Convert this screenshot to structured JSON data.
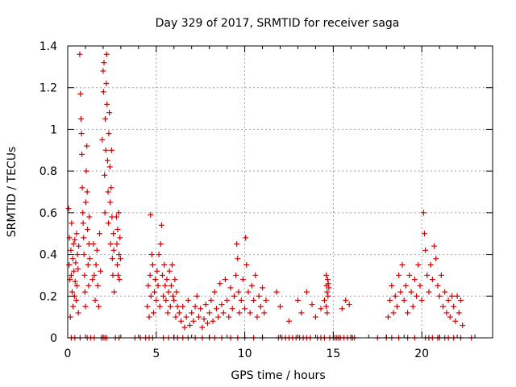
{
  "chart_data": {
    "type": "scatter",
    "title": "Day 329 of 2017, SRMTID for receiver saga",
    "xlabel": "GPS time / hours",
    "ylabel": "SRMTID / TECUs",
    "xlim": [
      0,
      24
    ],
    "ylim": [
      0,
      1.4
    ],
    "xticks": [
      0,
      5,
      10,
      15,
      20
    ],
    "xtick_labels": [
      "0",
      "5",
      "10",
      "15",
      "20"
    ],
    "yticks": [
      0,
      0.2,
      0.4,
      0.6,
      0.8,
      1.0,
      1.2,
      1.4
    ],
    "ytick_labels": [
      "0",
      "0.2",
      "0.4",
      "0.6",
      "0.8",
      "1",
      "1.2",
      "1.4"
    ],
    "grid": true,
    "marker": "+",
    "colors": {
      "marker": "#d00000",
      "grid": "#a0a0a0",
      "axis": "#000000"
    },
    "series": [
      {
        "name": "SRMTID",
        "points": [
          [
            0.05,
            0.62
          ],
          [
            0.08,
            0.35
          ],
          [
            0.1,
            0.48
          ],
          [
            0.12,
            0.28
          ],
          [
            0.15,
            0.1
          ],
          [
            0.18,
            0.42
          ],
          [
            0.2,
            0.3
          ],
          [
            0.22,
            0.55
          ],
          [
            0.25,
            0.22
          ],
          [
            0.28,
            0.38
          ],
          [
            0.3,
            0.15
          ],
          [
            0.33,
            0.45
          ],
          [
            0.35,
            0.32
          ],
          [
            0.38,
            0.2
          ],
          [
            0.4,
            0.47
          ],
          [
            0.42,
            0.27
          ],
          [
            0.45,
            0.36
          ],
          [
            0.48,
            0.18
          ],
          [
            0.5,
            0.5
          ],
          [
            0.52,
            0.25
          ],
          [
            0.55,
            0.4
          ],
          [
            0.58,
            0.33
          ],
          [
            0.6,
            0.12
          ],
          [
            0.62,
            0.44
          ],
          [
            0.68,
            1.36
          ],
          [
            0.72,
            1.17
          ],
          [
            0.75,
            1.05
          ],
          [
            0.78,
            0.98
          ],
          [
            0.8,
            0.88
          ],
          [
            0.82,
            0.72
          ],
          [
            0.85,
            0.6
          ],
          [
            0.87,
            0.55
          ],
          [
            0.9,
            0.48
          ],
          [
            0.92,
            0.4
          ],
          [
            0.95,
            0.3
          ],
          [
            0.97,
            0.22
          ],
          [
            1.0,
            0.15
          ],
          [
            1.02,
            0.65
          ],
          [
            1.05,
            0.8
          ],
          [
            1.08,
            0.92
          ],
          [
            1.1,
            0.7
          ],
          [
            1.12,
            0.52
          ],
          [
            1.15,
            0.35
          ],
          [
            1.18,
            0.25
          ],
          [
            1.2,
            0.45
          ],
          [
            1.22,
            0.58
          ],
          [
            1.25,
            0.38
          ],
          [
            1.4,
            0.28
          ],
          [
            1.45,
            0.45
          ],
          [
            1.5,
            0.3
          ],
          [
            1.55,
            0.18
          ],
          [
            1.6,
            0.35
          ],
          [
            1.65,
            0.42
          ],
          [
            1.7,
            0.25
          ],
          [
            1.75,
            0.15
          ],
          [
            1.8,
            0.5
          ],
          [
            1.85,
            0.32
          ],
          [
            1.95,
            0.95
          ],
          [
            2.0,
            1.28
          ],
          [
            2.02,
            1.18
          ],
          [
            2.05,
            1.32
          ],
          [
            2.08,
            0.78
          ],
          [
            2.1,
            0.6
          ],
          [
            2.12,
            1.05
          ],
          [
            2.15,
            0.9
          ],
          [
            2.18,
            1.22
          ],
          [
            2.2,
            1.36
          ],
          [
            2.22,
            1.12
          ],
          [
            2.25,
            0.85
          ],
          [
            2.28,
            0.7
          ],
          [
            2.3,
            0.55
          ],
          [
            2.32,
            0.98
          ],
          [
            2.35,
            1.08
          ],
          [
            2.38,
            0.82
          ],
          [
            2.4,
            0.65
          ],
          [
            2.42,
            0.45
          ],
          [
            2.45,
            0.72
          ],
          [
            2.48,
            0.9
          ],
          [
            2.5,
            0.58
          ],
          [
            2.52,
            0.38
          ],
          [
            2.55,
            0.3
          ],
          [
            2.58,
            0.5
          ],
          [
            2.6,
            0.42
          ],
          [
            2.62,
            0.22
          ],
          [
            2.75,
            0.58
          ],
          [
            2.78,
            0.45
          ],
          [
            2.8,
            0.35
          ],
          [
            2.82,
            0.52
          ],
          [
            2.85,
            0.3
          ],
          [
            2.88,
            0.6
          ],
          [
            2.9,
            0.4
          ],
          [
            2.92,
            0.28
          ],
          [
            2.95,
            0.48
          ],
          [
            2.98,
            0.38
          ],
          [
            4.5,
            0.15
          ],
          [
            4.55,
            0.25
          ],
          [
            4.6,
            0.1
          ],
          [
            4.65,
            0.3
          ],
          [
            4.68,
            0.59
          ],
          [
            4.7,
            0.2
          ],
          [
            4.75,
            0.4
          ],
          [
            4.8,
            0.35
          ],
          [
            4.85,
            0.12
          ],
          [
            4.9,
            0.22
          ],
          [
            4.95,
            0.28
          ],
          [
            5.0,
            0.18
          ],
          [
            5.05,
            0.32
          ],
          [
            5.1,
            0.25
          ],
          [
            5.15,
            0.4
          ],
          [
            5.2,
            0.15
          ],
          [
            5.25,
            0.45
          ],
          [
            5.3,
            0.54
          ],
          [
            5.35,
            0.3
          ],
          [
            5.4,
            0.2
          ],
          [
            5.45,
            0.35
          ],
          [
            5.5,
            0.25
          ],
          [
            5.55,
            0.18
          ],
          [
            5.6,
            0.28
          ],
          [
            5.65,
            0.12
          ],
          [
            5.7,
            0.22
          ],
          [
            5.75,
            0.32
          ],
          [
            5.8,
            0.15
          ],
          [
            5.85,
            0.25
          ],
          [
            5.9,
            0.35
          ],
          [
            5.95,
            0.2
          ],
          [
            6.0,
            0.18
          ],
          [
            6.05,
            0.28
          ],
          [
            6.1,
            0.1
          ],
          [
            6.15,
            0.22
          ],
          [
            6.2,
            0.15
          ],
          [
            6.3,
            0.12
          ],
          [
            6.4,
            0.08
          ],
          [
            6.5,
            0.15
          ],
          [
            6.6,
            0.05
          ],
          [
            6.7,
            0.1
          ],
          [
            6.8,
            0.18
          ],
          [
            6.9,
            0.06
          ],
          [
            7.0,
            0.12
          ],
          [
            7.1,
            0.08
          ],
          [
            7.2,
            0.15
          ],
          [
            7.3,
            0.2
          ],
          [
            7.4,
            0.1
          ],
          [
            7.5,
            0.14
          ],
          [
            7.6,
            0.05
          ],
          [
            7.7,
            0.09
          ],
          [
            7.8,
            0.16
          ],
          [
            7.9,
            0.07
          ],
          [
            8.0,
            0.12
          ],
          [
            8.1,
            0.18
          ],
          [
            8.2,
            0.08
          ],
          [
            8.3,
            0.22
          ],
          [
            8.4,
            0.14
          ],
          [
            8.5,
            0.1
          ],
          [
            8.6,
            0.26
          ],
          [
            8.7,
            0.16
          ],
          [
            8.8,
            0.12
          ],
          [
            8.9,
            0.28
          ],
          [
            9.0,
            0.18
          ],
          [
            9.1,
            0.1
          ],
          [
            9.2,
            0.24
          ],
          [
            9.3,
            0.14
          ],
          [
            9.4,
            0.2
          ],
          [
            9.5,
            0.3
          ],
          [
            9.55,
            0.45
          ],
          [
            9.6,
            0.38
          ],
          [
            9.65,
            0.22
          ],
          [
            9.7,
            0.12
          ],
          [
            9.8,
            0.18
          ],
          [
            9.9,
            0.28
          ],
          [
            10.0,
            0.14
          ],
          [
            10.05,
            0.48
          ],
          [
            10.1,
            0.35
          ],
          [
            10.2,
            0.22
          ],
          [
            10.3,
            0.12
          ],
          [
            10.4,
            0.25
          ],
          [
            10.5,
            0.18
          ],
          [
            10.6,
            0.3
          ],
          [
            10.7,
            0.1
          ],
          [
            10.8,
            0.2
          ],
          [
            10.9,
            0.15
          ],
          [
            11.0,
            0.24
          ],
          [
            11.1,
            0.12
          ],
          [
            11.2,
            0.18
          ],
          [
            11.8,
            0.22
          ],
          [
            12.0,
            0.15
          ],
          [
            12.5,
            0.08
          ],
          [
            13.0,
            0.18
          ],
          [
            13.2,
            0.12
          ],
          [
            13.5,
            0.22
          ],
          [
            13.8,
            0.16
          ],
          [
            14.0,
            0.1
          ],
          [
            14.3,
            0.14
          ],
          [
            14.5,
            0.18
          ],
          [
            14.6,
            0.3
          ],
          [
            14.62,
            0.25
          ],
          [
            14.65,
            0.22
          ],
          [
            14.68,
            0.28
          ],
          [
            14.7,
            0.2
          ],
          [
            14.72,
            0.26
          ],
          [
            14.75,
            0.24
          ],
          [
            14.6,
            0.15
          ],
          [
            14.65,
            0.12
          ],
          [
            15.5,
            0.14
          ],
          [
            15.7,
            0.18
          ],
          [
            15.9,
            0.16
          ],
          [
            18.1,
            0.1
          ],
          [
            18.2,
            0.18
          ],
          [
            18.3,
            0.25
          ],
          [
            18.4,
            0.12
          ],
          [
            18.5,
            0.2
          ],
          [
            18.6,
            0.15
          ],
          [
            18.7,
            0.3
          ],
          [
            18.8,
            0.22
          ],
          [
            18.9,
            0.35
          ],
          [
            19.0,
            0.18
          ],
          [
            19.1,
            0.25
          ],
          [
            19.2,
            0.12
          ],
          [
            19.3,
            0.3
          ],
          [
            19.4,
            0.22
          ],
          [
            19.5,
            0.15
          ],
          [
            19.6,
            0.28
          ],
          [
            19.7,
            0.2
          ],
          [
            19.8,
            0.35
          ],
          [
            19.9,
            0.25
          ],
          [
            20.0,
            0.18
          ],
          [
            20.1,
            0.6
          ],
          [
            20.15,
            0.5
          ],
          [
            20.2,
            0.42
          ],
          [
            20.3,
            0.3
          ],
          [
            20.4,
            0.22
          ],
          [
            20.5,
            0.35
          ],
          [
            20.6,
            0.28
          ],
          [
            20.7,
            0.44
          ],
          [
            20.8,
            0.38
          ],
          [
            20.9,
            0.25
          ],
          [
            21.0,
            0.2
          ],
          [
            21.1,
            0.3
          ],
          [
            21.2,
            0.15
          ],
          [
            21.3,
            0.22
          ],
          [
            21.4,
            0.12
          ],
          [
            21.5,
            0.18
          ],
          [
            21.6,
            0.1
          ],
          [
            21.7,
            0.2
          ],
          [
            21.8,
            0.15
          ],
          [
            21.9,
            0.08
          ],
          [
            22.0,
            0.2
          ],
          [
            22.1,
            0.12
          ],
          [
            22.2,
            0.18
          ],
          [
            22.3,
            0.06
          ]
        ],
        "zero_points": [
          0.2,
          0.4,
          0.7,
          1.1,
          1.3,
          1.5,
          1.9,
          2.0,
          2.1,
          2.2,
          2.7,
          2.9,
          3.8,
          4.1,
          4.4,
          4.6,
          4.8,
          5.4,
          5.7,
          6.0,
          6.2,
          6.5,
          6.8,
          7.2,
          7.6,
          8.0,
          8.3,
          8.7,
          9.2,
          9.6,
          10.0,
          10.5,
          11.0,
          11.9,
          12.1,
          12.3,
          12.5,
          12.7,
          12.9,
          13.1,
          13.3,
          13.5,
          13.7,
          14.1,
          14.3,
          14.5,
          14.8,
          15.0,
          15.1,
          15.2,
          15.3,
          15.4,
          15.6,
          15.8,
          16.0,
          16.1,
          16.2,
          17.5,
          18.0,
          18.3,
          18.7,
          19.2,
          19.6,
          20.2,
          20.4,
          20.6,
          20.9,
          21.0,
          21.3,
          21.5,
          21.8,
          22.2,
          22.8
        ]
      }
    ]
  }
}
